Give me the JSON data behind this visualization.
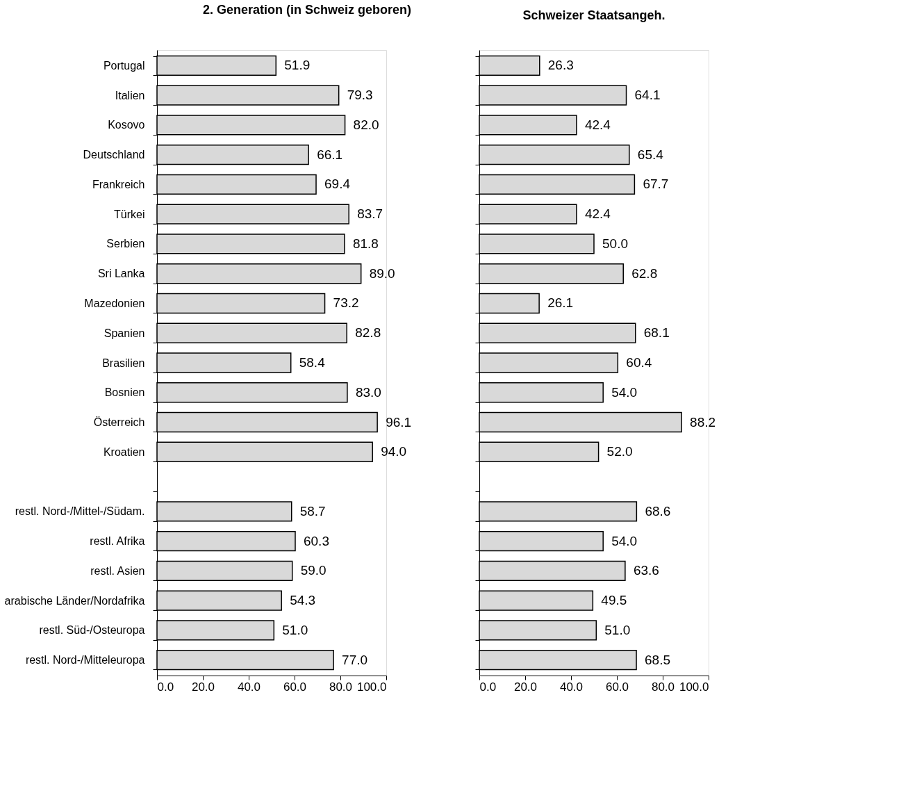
{
  "chart_data": [
    {
      "type": "bar",
      "orientation": "horizontal",
      "title": "2. Generation (in Schweiz geboren)",
      "categories": [
        "Portugal",
        "Italien",
        "Kosovo",
        "Deutschland",
        "Frankreich",
        "Türkei",
        "Serbien",
        "Sri Lanka",
        "Mazedonien",
        "Spanien",
        "Brasilien",
        "Bosnien",
        "Österreich",
        "Kroatien",
        null,
        "restl. Nord-/Mittel-/Südam.",
        "restl. Afrika",
        "restl. Asien",
        "arabische Länder/Nordafrika",
        "restl. Süd-/Osteuropa",
        "restl. Nord-/Mitteleuropa"
      ],
      "values": [
        51.9,
        79.3,
        82.0,
        66.1,
        69.4,
        83.7,
        81.8,
        89.0,
        73.2,
        82.8,
        58.4,
        83.0,
        96.1,
        94.0,
        null,
        58.7,
        60.3,
        59.0,
        54.3,
        51.0,
        77.0
      ],
      "value_labels": [
        "51.9",
        "79.3",
        "82.0",
        "66.1",
        "69.4",
        "83.7",
        "81.8",
        "89.0",
        "73.2",
        "82.8",
        "58.4",
        "83.0",
        "96.1",
        "94.0",
        null,
        "58.7",
        "60.3",
        "59.0",
        "54.3",
        "51.0",
        "77.0"
      ],
      "color": "#d9d9d9",
      "xlim": [
        0,
        100
      ],
      "xticks": [
        {
          "value": 0,
          "label": "0.0"
        },
        {
          "value": 20,
          "label": "20.0"
        },
        {
          "value": 40,
          "label": "40.0"
        },
        {
          "value": 60,
          "label": "60.0"
        },
        {
          "value": 80,
          "label": "80.0"
        },
        {
          "value": 100,
          "label": "100.0"
        }
      ],
      "grid": false
    },
    {
      "type": "bar",
      "orientation": "horizontal",
      "title": "Schweizer Staatsangeh.",
      "categories": [
        "Portugal",
        "Italien",
        "Kosovo",
        "Deutschland",
        "Frankreich",
        "Türkei",
        "Serbien",
        "Sri Lanka",
        "Mazedonien",
        "Spanien",
        "Brasilien",
        "Bosnien",
        "Österreich",
        "Kroatien",
        null,
        "restl. Nord-/Mittel-/Südam.",
        "restl. Afrika",
        "restl. Asien",
        "arabische Länder/Nordafrika",
        "restl. Süd-/Osteuropa",
        "restl. Nord-/Mitteleuropa"
      ],
      "values": [
        26.3,
        64.1,
        42.4,
        65.4,
        67.7,
        42.4,
        50.0,
        62.8,
        26.1,
        68.1,
        60.4,
        54.0,
        88.2,
        52.0,
        null,
        68.6,
        54.0,
        63.6,
        49.5,
        51.0,
        68.5
      ],
      "value_labels": [
        "26.3",
        "64.1",
        "42.4",
        "65.4",
        "67.7",
        "42.4",
        "50.0",
        "62.8",
        "26.1",
        "68.1",
        "60.4",
        "54.0",
        "88.2",
        "52.0",
        null,
        "68.6",
        "54.0",
        "63.6",
        "49.5",
        "51.0",
        "68.5"
      ],
      "color": "#d9d9d9",
      "xlim": [
        0,
        100
      ],
      "xticks": [
        {
          "value": 0,
          "label": "0.0"
        },
        {
          "value": 20,
          "label": "20.0"
        },
        {
          "value": 40,
          "label": "40.0"
        },
        {
          "value": 60,
          "label": "60.0"
        },
        {
          "value": 80,
          "label": "80.0"
        },
        {
          "value": 100,
          "label": "100.0"
        }
      ],
      "grid": false,
      "tick_labels": "x"
    }
  ]
}
